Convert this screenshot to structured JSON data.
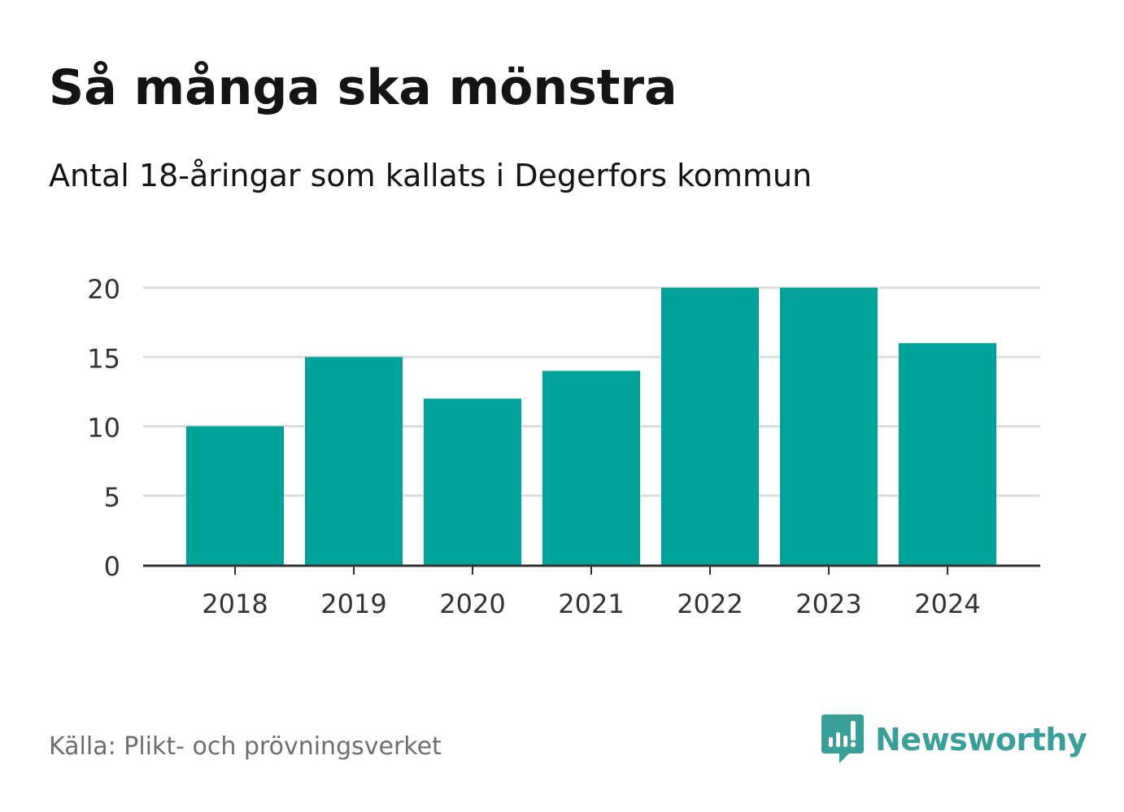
{
  "title": "Så många ska mönstra",
  "subtitle": "Antal 18-åringar som kallats i Degerfors kommun",
  "source": "Källa: Plikt- och prövningsverket",
  "brand": {
    "name": "Newsworthy",
    "icon": "newsworthy-logo-icon",
    "color": "#3a9f99"
  },
  "chart_data": {
    "type": "bar",
    "title": "Så många ska mönstra",
    "subtitle": "Antal 18-åringar som kallats i Degerfors kommun",
    "xlabel": "",
    "ylabel": "",
    "categories": [
      "2018",
      "2019",
      "2020",
      "2021",
      "2022",
      "2023",
      "2024"
    ],
    "values": [
      10,
      15,
      12,
      14,
      20,
      20,
      16
    ],
    "ylim": [
      0,
      20
    ],
    "yticks": [
      0,
      5,
      10,
      15,
      20
    ],
    "grid": true,
    "bar_color": "#00a39a",
    "grid_color": "#dcdcdc",
    "axis_color": "#333333",
    "tick_label_color": "#333333"
  }
}
